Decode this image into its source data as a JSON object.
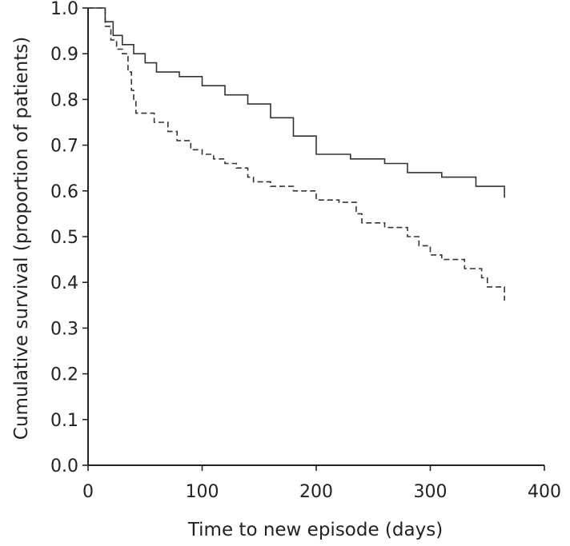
{
  "chart_data": {
    "type": "line",
    "title": "",
    "xlabel": "Time to new episode (days)",
    "ylabel": "Cumulative survival (proportion of patients)",
    "xlim": [
      0,
      400
    ],
    "ylim": [
      0.0,
      1.0
    ],
    "x_ticks": [
      0,
      100,
      200,
      300,
      400
    ],
    "x_tick_labels": [
      "0",
      "100",
      "200",
      "300",
      "400"
    ],
    "y_ticks": [
      0.0,
      0.1,
      0.2,
      0.3,
      0.4,
      0.5,
      0.6,
      0.7,
      0.8,
      0.9,
      1.0
    ],
    "y_tick_labels": [
      "0.0",
      "0.1",
      "0.2",
      "0.3",
      "0.4",
      "0.5",
      "0.6",
      "0.7",
      "0.8",
      "0.9",
      "1.0"
    ],
    "grid": false,
    "legend": "none",
    "series": [
      {
        "style": "solid",
        "color": "#333333",
        "points": [
          [
            0,
            1.0
          ],
          [
            10,
            1.0
          ],
          [
            15,
            0.97
          ],
          [
            22,
            0.94
          ],
          [
            30,
            0.92
          ],
          [
            40,
            0.9
          ],
          [
            50,
            0.88
          ],
          [
            60,
            0.86
          ],
          [
            80,
            0.85
          ],
          [
            100,
            0.83
          ],
          [
            120,
            0.81
          ],
          [
            140,
            0.79
          ],
          [
            160,
            0.76
          ],
          [
            180,
            0.72
          ],
          [
            200,
            0.68
          ],
          [
            230,
            0.67
          ],
          [
            260,
            0.66
          ],
          [
            280,
            0.64
          ],
          [
            310,
            0.63
          ],
          [
            340,
            0.61
          ],
          [
            365,
            0.585
          ]
        ]
      },
      {
        "style": "dashed",
        "color": "#333333",
        "points": [
          [
            0,
            1.0
          ],
          [
            12,
            1.0
          ],
          [
            15,
            0.96
          ],
          [
            20,
            0.93
          ],
          [
            25,
            0.91
          ],
          [
            30,
            0.9
          ],
          [
            35,
            0.86
          ],
          [
            38,
            0.82
          ],
          [
            40,
            0.8
          ],
          [
            42,
            0.77
          ],
          [
            55,
            0.77
          ],
          [
            58,
            0.75
          ],
          [
            70,
            0.73
          ],
          [
            78,
            0.71
          ],
          [
            90,
            0.69
          ],
          [
            100,
            0.68
          ],
          [
            110,
            0.67
          ],
          [
            120,
            0.66
          ],
          [
            130,
            0.65
          ],
          [
            140,
            0.63
          ],
          [
            145,
            0.62
          ],
          [
            160,
            0.61
          ],
          [
            180,
            0.6
          ],
          [
            200,
            0.58
          ],
          [
            220,
            0.575
          ],
          [
            235,
            0.55
          ],
          [
            240,
            0.53
          ],
          [
            260,
            0.52
          ],
          [
            280,
            0.5
          ],
          [
            290,
            0.48
          ],
          [
            300,
            0.46
          ],
          [
            310,
            0.45
          ],
          [
            330,
            0.43
          ],
          [
            345,
            0.41
          ],
          [
            350,
            0.39
          ],
          [
            365,
            0.39
          ],
          [
            365,
            0.36
          ]
        ]
      }
    ]
  }
}
